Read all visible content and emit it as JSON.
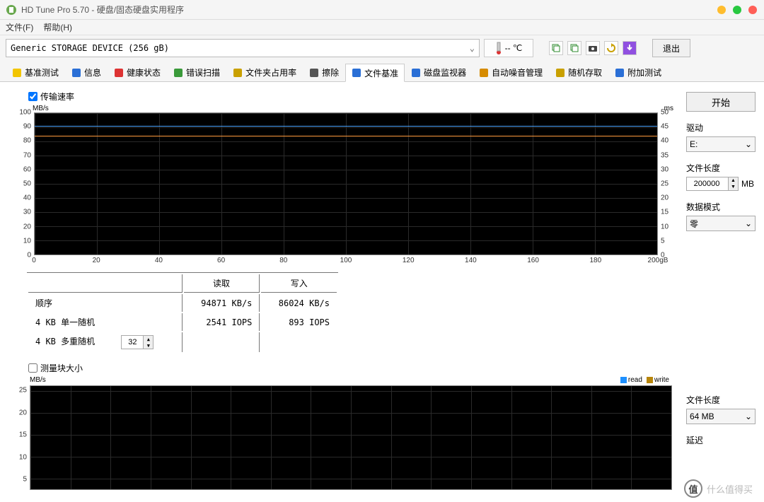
{
  "window": {
    "title": "HD Tune Pro 5.70 - 硬盘/固态硬盘实用程序",
    "controls": {
      "min_color": "#ffbd2e",
      "close_color": "#28c840",
      "mid_color": "#febc2e"
    }
  },
  "menu": {
    "file": "文件(F)",
    "help": "帮助(H)"
  },
  "toolbar": {
    "device": "Generic STORAGE DEVICE (256 gB)",
    "temp": "-- ℃",
    "exit": "退出",
    "icon_colors": {
      "copy1": "#2e8b2e",
      "copy2": "#2e8b2e",
      "camera": "#333",
      "refresh": "#c9a000",
      "down": "#8a2be2"
    }
  },
  "tabs": [
    {
      "label": "基准测试",
      "icon_color": "#f2c500"
    },
    {
      "label": "信息",
      "icon_color": "#2a6fd6"
    },
    {
      "label": "健康状态",
      "icon_color": "#d33"
    },
    {
      "label": "错误扫描",
      "icon_color": "#3a9a3a"
    },
    {
      "label": "文件夹占用率",
      "icon_color": "#c9a000"
    },
    {
      "label": "擦除",
      "icon_color": "#555"
    },
    {
      "label": "文件基准",
      "icon_color": "#2a6fd6",
      "active": true
    },
    {
      "label": "磁盘监视器",
      "icon_color": "#2a6fd6"
    },
    {
      "label": "自动噪音管理",
      "icon_color": "#d68b00"
    },
    {
      "label": "随机存取",
      "icon_color": "#c9a000"
    },
    {
      "label": "附加测试",
      "icon_color": "#2a6fd6"
    }
  ],
  "transfer": {
    "checkbox_label": "传输速率",
    "checked": true,
    "unit_left": "MB/s",
    "unit_right": "ms",
    "y_left_ticks": [
      100,
      90,
      80,
      70,
      60,
      50,
      40,
      30,
      20,
      10,
      0
    ],
    "y_right_ticks": [
      50,
      45,
      40,
      35,
      30,
      25,
      20,
      15,
      10,
      5,
      0
    ],
    "x_ticks": [
      "0",
      "20",
      "40",
      "60",
      "80",
      "100",
      "120",
      "140",
      "160",
      "180",
      "200gB"
    ],
    "trace_read": {
      "value": 91,
      "color": "#4aa3ff"
    },
    "trace_write": {
      "value": 84,
      "color": "#ff9a3c"
    },
    "background": "#000000",
    "grid_color": "#2a2a2a"
  },
  "results": {
    "cols": {
      "read": "读取",
      "write": "写入"
    },
    "rows": [
      {
        "label": "顺序",
        "read": "94871 KB/s",
        "write": "86024 KB/s"
      },
      {
        "label": "4 KB 单一随机",
        "read": "2541 IOPS",
        "write": "893 IOPS"
      }
    ],
    "multi_label": "4 KB 多重随机",
    "multi_value": "32"
  },
  "blocksize": {
    "checkbox_label": "测量块大小",
    "checked": false,
    "unit_left": "MB/s",
    "y_ticks": [
      25,
      20,
      15,
      10,
      5
    ],
    "legend": [
      {
        "label": "read",
        "color": "#1e90ff"
      },
      {
        "label": "write",
        "color": "#b8860b"
      }
    ],
    "background": "#000000",
    "grid_color": "#2a2a2a"
  },
  "side": {
    "start": "开始",
    "drive_label": "驱动",
    "drive_value": "E:",
    "filelen_label": "文件长度",
    "filelen_value": "200000",
    "filelen_unit": "MB",
    "mode_label": "数据模式",
    "mode_value": "零",
    "filelen2_label": "文件长度",
    "filelen2_value": "64 MB",
    "delay_label": "延迟"
  },
  "watermark": {
    "badge": "值",
    "text": "什么值得买"
  }
}
